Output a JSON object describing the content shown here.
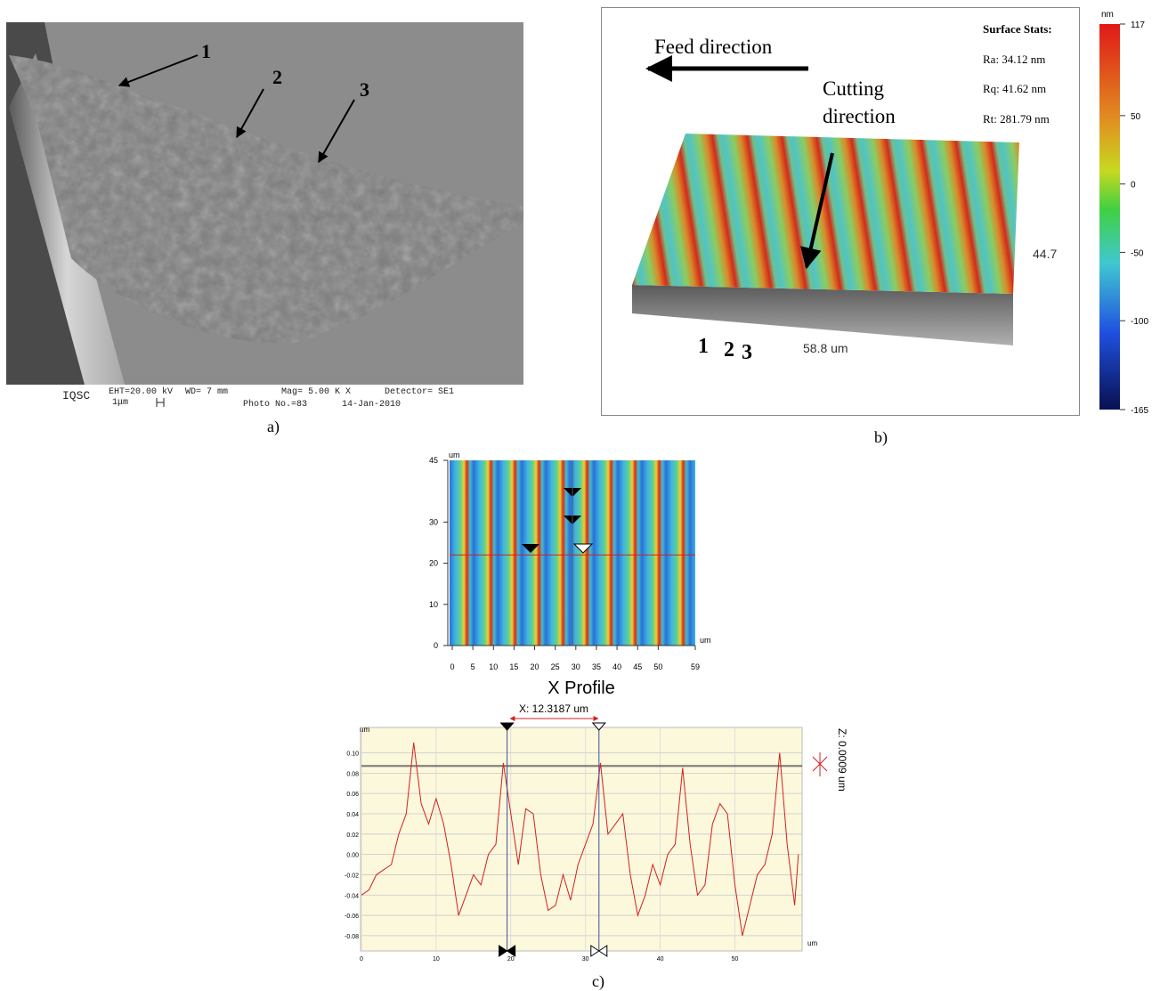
{
  "panel_a": {
    "labels": [
      "1",
      "2",
      "3"
    ],
    "footer": {
      "institute": "IQSC",
      "eht": "EHT=20.00 kV",
      "scale": "1μm",
      "wd": "WD=   7 mm",
      "photo": "Photo No.=83",
      "mag": "Mag=  5.00 K X",
      "date": "14-Jan-2010",
      "detector": "Detector= SE1"
    },
    "caption": "a)"
  },
  "panel_b": {
    "feed": "Feed direction",
    "cutting": [
      "Cutting",
      "direction"
    ],
    "stats_title": "Surface Stats:",
    "stats": [
      "Ra: 34.12 nm",
      "Rq: 41.62 nm",
      "Rt: 281.79 nm"
    ],
    "height_label": "44.7",
    "width_label": "58.8 um",
    "numbers": [
      "1",
      "2",
      "3"
    ],
    "colorbar": {
      "unit": "nm",
      "clim": [
        -165,
        117
      ],
      "ticks": [
        117,
        50,
        0,
        -50,
        -100,
        -165
      ]
    },
    "caption": "b)"
  },
  "panel_c": {
    "map": {
      "y_unit": "um",
      "x_unit": "um",
      "xlim": [
        0,
        59
      ],
      "ylim": [
        0,
        45
      ],
      "xticks": [
        0,
        5,
        10,
        15,
        20,
        25,
        30,
        35,
        40,
        45,
        50,
        59
      ],
      "yticks": [
        0,
        10,
        20,
        30,
        45
      ],
      "profile_y": 22
    },
    "profile": {
      "type": "line",
      "title": "X Profile",
      "cursor_label": "X: 12.3187 um",
      "z_label": "Z: 0.0009 um",
      "y_unit": "um",
      "x_unit": "um",
      "color": "#d42020",
      "grid": true,
      "x": [
        0,
        1,
        2,
        3,
        4,
        5,
        6,
        7,
        8,
        9,
        10,
        11,
        12,
        13,
        14,
        15,
        16,
        17,
        18,
        19,
        20,
        21,
        22,
        23,
        24,
        25,
        26,
        27,
        28,
        29,
        30,
        31,
        32,
        33,
        34,
        35,
        36,
        37,
        38,
        39,
        40,
        41,
        42,
        43,
        44,
        45,
        46,
        47,
        48,
        49,
        50,
        51,
        52,
        53,
        54,
        55,
        56,
        57,
        58,
        58.5
      ],
      "values": [
        -0.04,
        -0.035,
        -0.02,
        -0.015,
        -0.01,
        0.02,
        0.04,
        0.11,
        0.05,
        0.03,
        0.055,
        0.03,
        -0.01,
        -0.06,
        -0.04,
        -0.02,
        -0.03,
        0.0,
        0.01,
        0.09,
        0.04,
        -0.01,
        0.045,
        0.04,
        -0.02,
        -0.055,
        -0.05,
        -0.02,
        -0.045,
        -0.01,
        0.01,
        0.03,
        0.09,
        0.02,
        0.03,
        0.04,
        -0.02,
        -0.06,
        -0.04,
        -0.01,
        -0.03,
        0.0,
        0.01,
        0.085,
        0.01,
        -0.04,
        -0.03,
        0.03,
        0.05,
        0.04,
        -0.03,
        -0.08,
        -0.05,
        -0.02,
        -0.01,
        0.02,
        0.1,
        0.01,
        -0.05,
        0.0
      ],
      "xlim": [
        0,
        59
      ],
      "ylim": [
        -0.095,
        0.125
      ],
      "xticks": [
        0,
        10,
        20,
        30,
        40,
        50
      ],
      "yticks": [
        {
          "value": 0.1,
          "label": "0.10"
        },
        0.08,
        0.06,
        0.04,
        0.02,
        {
          "value": 0,
          "label": "0.00"
        },
        -0.02,
        -0.04,
        -0.06,
        -0.08
      ],
      "cursors": [
        19.5,
        31.8
      ],
      "cursor_levels": [
        0.0875,
        0.0866
      ]
    },
    "caption": "c)"
  }
}
